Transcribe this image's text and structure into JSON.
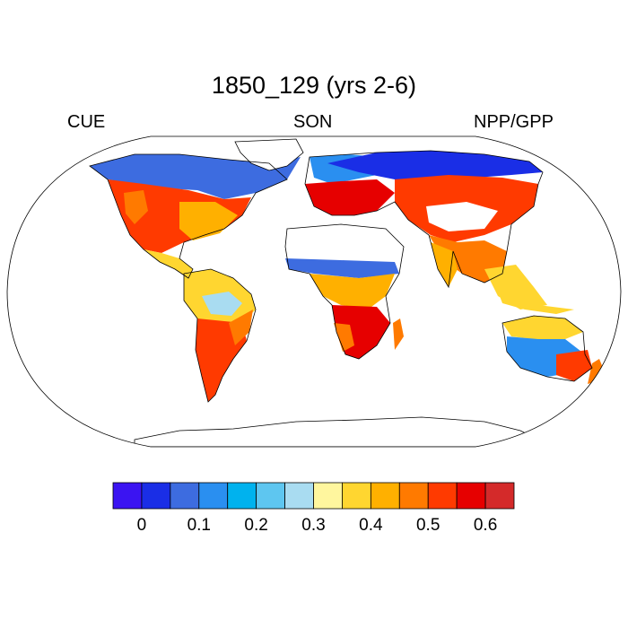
{
  "title": "1850_129 (yrs 2-6)",
  "left_label": "CUE",
  "center_label": "SON",
  "right_label": "NPP/GPP",
  "colorbar": {
    "colors": [
      "#3b14f2",
      "#1a2ee6",
      "#3d6ce0",
      "#2a8ff0",
      "#00b2ee",
      "#5ec6f0",
      "#a9dcf1",
      "#fff69e",
      "#ffd630",
      "#ffb000",
      "#ff7a00",
      "#ff3a00",
      "#e60000",
      "#d42a2a"
    ],
    "tick_labels": [
      "0",
      "0.1",
      "0.2",
      "0.3",
      "0.4",
      "0.5",
      "0.6"
    ]
  },
  "map": {
    "projection": "robinson",
    "variable": "CUE",
    "ocean_color": "#ffffff",
    "missing_color": "#ffffff"
  }
}
